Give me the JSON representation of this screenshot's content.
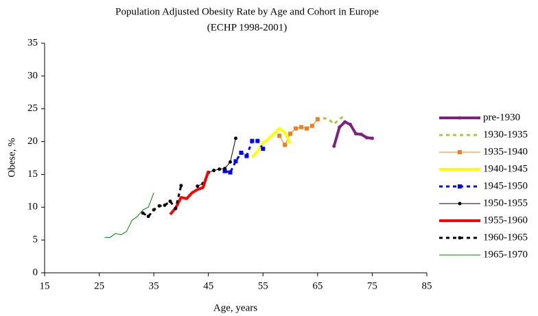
{
  "chart_data": {
    "type": "line",
    "title": "Population Adjusted Obesity Rate by Age and Cohort in Europe",
    "subtitle": "(ECHP 1998-2001)",
    "x_label": "Age, years",
    "y_label": "Obese, %",
    "xlim": [
      15,
      85
    ],
    "xticks": [
      15,
      25,
      35,
      45,
      55,
      65,
      75,
      85
    ],
    "ylim": [
      0,
      35
    ],
    "yticks": [
      0,
      5,
      10,
      15,
      20,
      25,
      30,
      35
    ],
    "grid": false,
    "legend": "right",
    "series": [
      {
        "name": "pre-1930",
        "color": "#7f1f7f",
        "width": 4,
        "dash": false,
        "marker": "circle",
        "x": [
          68,
          69,
          70,
          71,
          72,
          73,
          74,
          75
        ],
        "values": [
          19.3,
          22.2,
          23.0,
          22.6,
          21.2,
          21.1,
          20.6,
          20.5
        ]
      },
      {
        "name": "1930-1935",
        "color": "#a8c83c",
        "width": 3,
        "dash": true,
        "marker": null,
        "x": [
          66,
          67,
          68,
          69,
          70
        ],
        "values": [
          23.6,
          23.4,
          22.7,
          23.4,
          24.0
        ]
      },
      {
        "name": "1935-1940",
        "color": "#f07f20",
        "width": 1,
        "dash": false,
        "marker": "square",
        "x": [
          58,
          59,
          60,
          61,
          62,
          63,
          64,
          65
        ],
        "values": [
          20.9,
          19.5,
          21.2,
          22.0,
          22.2,
          22.0,
          22.4,
          23.4
        ]
      },
      {
        "name": "1940-1945",
        "color": "#ffff00",
        "width": 4,
        "dash": false,
        "marker": null,
        "x": [
          53,
          54,
          55,
          56,
          57,
          58,
          59,
          60
        ],
        "values": [
          17.6,
          18.5,
          19.8,
          20.4,
          21.2,
          22.0,
          21.4,
          19.7
        ]
      },
      {
        "name": "1945-1950",
        "color": "#0000ff",
        "width": 3,
        "dash": true,
        "marker": "square",
        "x": [
          48,
          49,
          50,
          51,
          52,
          53,
          54,
          55
        ],
        "values": [
          15.5,
          15.3,
          17.0,
          18.3,
          17.8,
          20.1,
          20.1,
          18.9
        ]
      },
      {
        "name": "1950-1955",
        "color": "#000000",
        "width": 1,
        "dash": false,
        "marker": "circle",
        "x": [
          43,
          44,
          45,
          46,
          47,
          48,
          49,
          50
        ],
        "values": [
          13.2,
          13.6,
          15.3,
          15.6,
          15.8,
          15.9,
          16.9,
          20.5
        ]
      },
      {
        "name": "1955-1960",
        "color": "#ff0000",
        "width": 4,
        "dash": false,
        "marker": null,
        "x": [
          38,
          39,
          40,
          41,
          42,
          43,
          44,
          45
        ],
        "values": [
          8.9,
          9.9,
          11.5,
          11.3,
          12.2,
          12.7,
          13.0,
          15.5
        ]
      },
      {
        "name": "1960-1965",
        "color": "#000000",
        "width": 3,
        "dash": true,
        "marker": "circle",
        "x": [
          33,
          34,
          35,
          36,
          37,
          38,
          39,
          40
        ],
        "values": [
          9.1,
          8.6,
          9.6,
          10.2,
          10.3,
          10.9,
          9.8,
          13.3
        ]
      },
      {
        "name": "1965-1970",
        "color": "#008000",
        "width": 1,
        "dash": false,
        "marker": null,
        "x": [
          26,
          27,
          28,
          29,
          30,
          31,
          32,
          33,
          34,
          35
        ],
        "values": [
          5.4,
          5.4,
          6.0,
          5.8,
          6.3,
          8.0,
          8.6,
          9.6,
          10.0,
          12.2
        ]
      }
    ]
  }
}
